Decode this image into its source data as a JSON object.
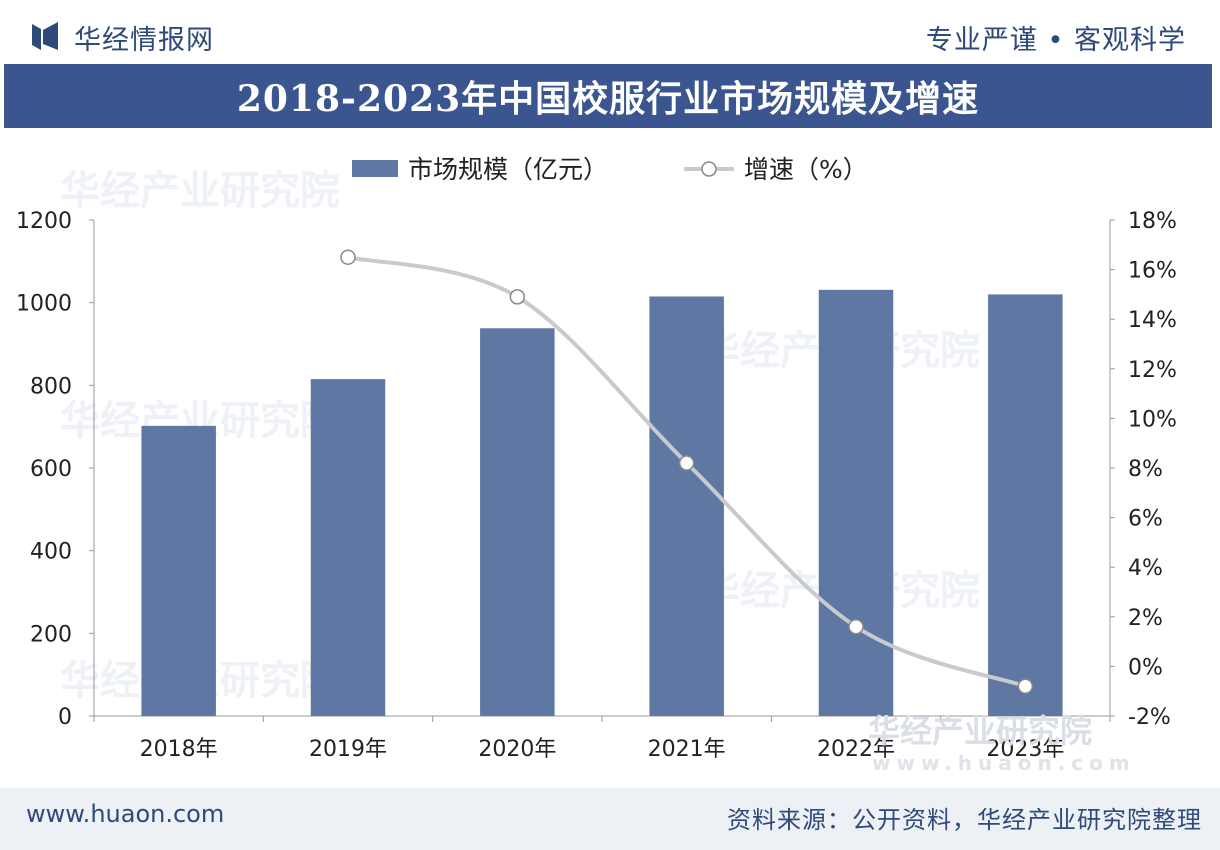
{
  "header": {
    "brand": "华经情报网",
    "slogan": "专业严谨 • 客观科学",
    "title": "2018-2023年中国校服行业市场规模及增速"
  },
  "legend": {
    "bar_label": "市场规模（亿元）",
    "line_label": "增速（%）"
  },
  "watermark": "华经产业研究院",
  "watermark_url": "www.huaon.com",
  "footer": {
    "site": "www.huaon.com",
    "source": "资料来源：公开资料，华经产业研究院整理"
  },
  "colors": {
    "bar": "#5f77a3",
    "line": "#c8cacd",
    "title_bg": "#3a5590",
    "brand_text": "#2e4a7a"
  },
  "chart_data": {
    "type": "bar",
    "title": "2018-2023年中国校服行业市场规模及增速",
    "categories": [
      "2018年",
      "2019年",
      "2020年",
      "2021年",
      "2022年",
      "2023年"
    ],
    "series": [
      {
        "name": "市场规模（亿元）",
        "type": "bar",
        "axis": "left",
        "values": [
          702,
          815,
          938,
          1015,
          1031,
          1020
        ]
      },
      {
        "name": "增速（%）",
        "type": "line",
        "axis": "right",
        "values": [
          null,
          16.5,
          14.9,
          8.2,
          1.6,
          -0.8
        ]
      }
    ],
    "y_left": {
      "min": 0,
      "max": 1200,
      "ticks": [
        "0",
        "200",
        "400",
        "600",
        "800",
        "1000",
        "1200"
      ]
    },
    "y_right": {
      "min": -2,
      "max": 18,
      "ticks": [
        "-2%",
        "0%",
        "2%",
        "4%",
        "6%",
        "8%",
        "10%",
        "12%",
        "14%",
        "16%",
        "18%"
      ]
    },
    "legend_position": "top-center",
    "grid": false
  }
}
